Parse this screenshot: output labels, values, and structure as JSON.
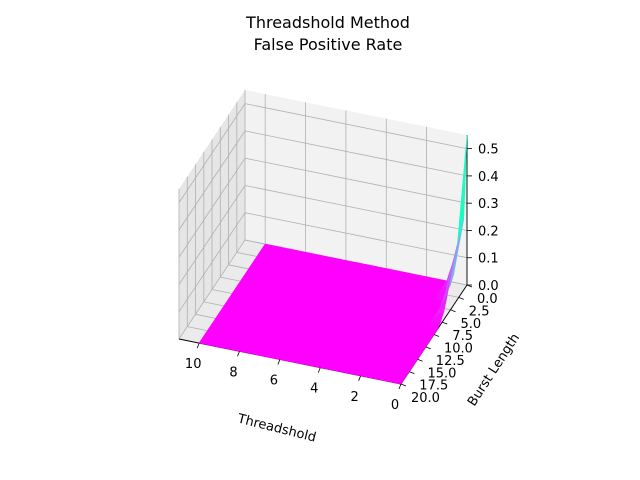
{
  "chart_data": {
    "type": "surface",
    "title": [
      "Threadshold Method",
      "False Positive Rate"
    ],
    "xlabel": "Threadshold",
    "ylabel": "Burst Length",
    "zlabel": "",
    "xlim": [
      0,
      11
    ],
    "ylim": [
      0,
      20
    ],
    "zlim": [
      0,
      0.55
    ],
    "x_ticks": [
      0,
      2,
      4,
      6,
      8,
      10
    ],
    "x_tick_labels": [
      "0",
      "2",
      "4",
      "6",
      "8",
      "10"
    ],
    "y_ticks": [
      0,
      2.5,
      5,
      7.5,
      10,
      12.5,
      15,
      17.5,
      20
    ],
    "y_tick_labels": [
      "0.0",
      "2.5",
      "5.0",
      "7.5",
      "10.0",
      "12.5",
      "15.0",
      "17.5",
      "20.0"
    ],
    "z_ticks": [
      0,
      0.1,
      0.2,
      0.3,
      0.4,
      0.5
    ],
    "z_tick_labels": [
      "0.0",
      "0.1",
      "0.2",
      "0.3",
      "0.4",
      "0.5"
    ],
    "grid": true,
    "colormap": "rainbow",
    "color_range": [
      0,
      0.55
    ],
    "x": [
      0,
      0.5,
      1,
      1.5,
      2,
      2.5,
      3,
      3.5,
      4,
      4.5,
      5,
      5.5,
      6,
      6.5,
      7,
      7.5,
      8,
      8.5,
      9,
      9.5,
      10
    ],
    "y": [
      0,
      1,
      2,
      3,
      4,
      5,
      6,
      7,
      8,
      9,
      10,
      11,
      12,
      13,
      14,
      15,
      16,
      17,
      18,
      19,
      20
    ],
    "z_profile_at_min_threshold_by_burst_length": [
      0.55,
      0.26,
      0.22,
      0.2,
      0.17,
      0.12,
      0.07,
      0.03,
      0.01,
      0,
      0,
      0,
      0,
      0,
      0,
      0,
      0,
      0,
      0,
      0,
      0
    ],
    "z_profile_near_min_threshold_by_burst_length": [
      0.12,
      0.05,
      0.03,
      0.02,
      0.01,
      0,
      0,
      0,
      0,
      0,
      0,
      0,
      0,
      0,
      0,
      0,
      0,
      0,
      0,
      0,
      0
    ],
    "z_elsewhere": 0
  }
}
